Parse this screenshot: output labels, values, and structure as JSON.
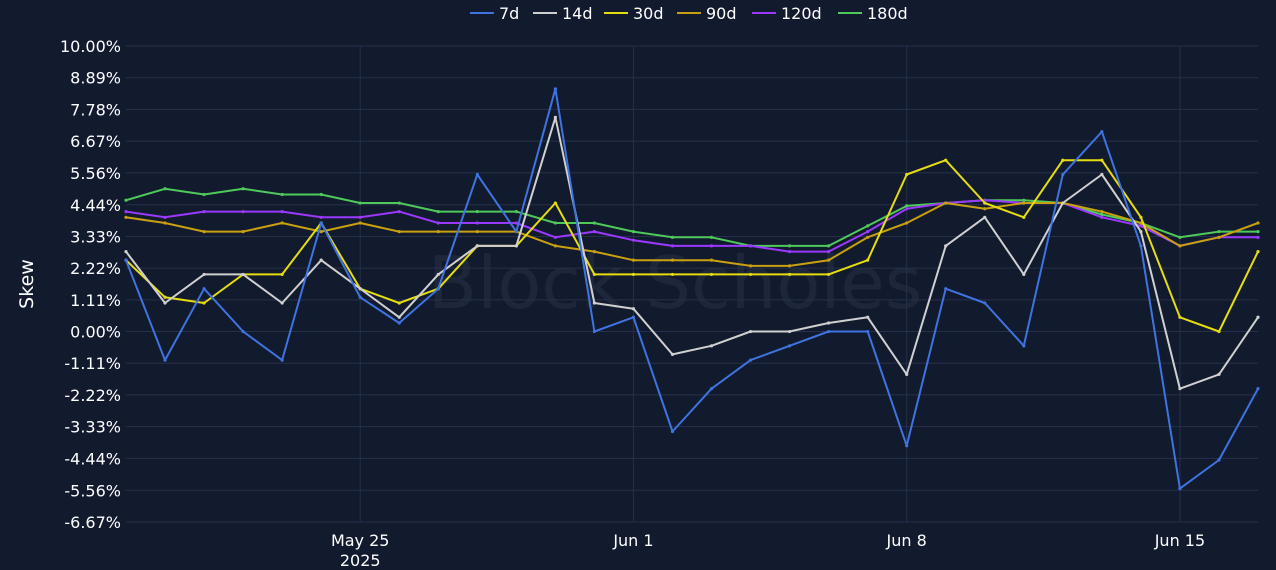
{
  "chart_data": {
    "type": "line",
    "xlabel": "",
    "ylabel": "Skew",
    "watermark": "Block Scholes",
    "y_ticks": [
      "10.00%",
      "8.89%",
      "7.78%",
      "6.67%",
      "5.56%",
      "4.44%",
      "3.33%",
      "2.22%",
      "1.11%",
      "0.00%",
      "-1.11%",
      "-2.22%",
      "-3.33%",
      "-4.44%",
      "-5.56%",
      "-6.67%"
    ],
    "ylim": [
      -6.67,
      10.0
    ],
    "x_range": [
      "2025-05-19",
      "2025-06-17"
    ],
    "x_ticks": [
      {
        "date": "2025-05-25",
        "label": "May 25",
        "sublabel": "2025"
      },
      {
        "date": "2025-06-01",
        "label": "Jun 1",
        "sublabel": ""
      },
      {
        "date": "2025-06-08",
        "label": "Jun 8",
        "sublabel": ""
      },
      {
        "date": "2025-06-15",
        "label": "Jun 15",
        "sublabel": ""
      }
    ],
    "grid": true,
    "legend_position": "top-center",
    "x": [
      "2025-05-19",
      "2025-05-20",
      "2025-05-21",
      "2025-05-22",
      "2025-05-23",
      "2025-05-24",
      "2025-05-25",
      "2025-05-26",
      "2025-05-27",
      "2025-05-28",
      "2025-05-29",
      "2025-05-30",
      "2025-05-31",
      "2025-06-01",
      "2025-06-02",
      "2025-06-03",
      "2025-06-04",
      "2025-06-05",
      "2025-06-06",
      "2025-06-07",
      "2025-06-08",
      "2025-06-09",
      "2025-06-10",
      "2025-06-11",
      "2025-06-12",
      "2025-06-13",
      "2025-06-14",
      "2025-06-15",
      "2025-06-16",
      "2025-06-17"
    ],
    "series": [
      {
        "name": "7d",
        "color": "#3f73e0",
        "values": [
          2.5,
          -1.0,
          1.5,
          0.0,
          -1.0,
          3.8,
          1.2,
          0.3,
          1.5,
          5.5,
          3.5,
          8.5,
          0.0,
          0.5,
          -3.5,
          -2.0,
          -1.0,
          -0.5,
          0.0,
          0.0,
          -4.0,
          1.5,
          1.0,
          -0.5,
          5.5,
          7.0,
          3.0,
          -5.5,
          -4.5,
          -2.0
        ]
      },
      {
        "name": "14d",
        "color": "#d0d0d0",
        "values": [
          2.8,
          1.0,
          2.0,
          2.0,
          1.0,
          2.5,
          1.5,
          0.5,
          2.0,
          3.0,
          3.0,
          7.5,
          1.0,
          0.8,
          -0.8,
          -0.5,
          0.0,
          0.0,
          0.3,
          0.5,
          -1.5,
          3.0,
          4.0,
          2.0,
          4.5,
          5.5,
          3.5,
          -2.0,
          -1.5,
          0.5
        ]
      },
      {
        "name": "30d",
        "color": "#e6dd10",
        "values": [
          2.5,
          1.2,
          1.0,
          2.0,
          2.0,
          3.8,
          1.5,
          1.0,
          1.5,
          3.0,
          3.0,
          4.5,
          2.0,
          2.0,
          2.0,
          2.0,
          2.0,
          2.0,
          2.0,
          2.5,
          5.5,
          6.0,
          4.5,
          4.0,
          6.0,
          6.0,
          4.0,
          0.5,
          0.0,
          2.8
        ]
      },
      {
        "name": "90d",
        "color": "#c8a010",
        "values": [
          4.0,
          3.8,
          3.5,
          3.5,
          3.8,
          3.5,
          3.8,
          3.5,
          3.5,
          3.5,
          3.5,
          3.0,
          2.8,
          2.5,
          2.5,
          2.5,
          2.3,
          2.3,
          2.5,
          3.3,
          3.8,
          4.5,
          4.3,
          4.5,
          4.5,
          4.2,
          3.8,
          3.0,
          3.3,
          3.8
        ]
      },
      {
        "name": "120d",
        "color": "#9a38ff",
        "values": [
          4.2,
          4.0,
          4.2,
          4.2,
          4.2,
          4.0,
          4.0,
          4.2,
          3.8,
          3.8,
          3.8,
          3.3,
          3.5,
          3.2,
          3.0,
          3.0,
          3.0,
          2.8,
          2.8,
          3.5,
          4.3,
          4.5,
          4.6,
          4.5,
          4.5,
          4.0,
          3.7,
          3.0,
          3.3,
          3.3
        ]
      },
      {
        "name": "180d",
        "color": "#4ec95a",
        "values": [
          4.6,
          5.0,
          4.8,
          5.0,
          4.8,
          4.8,
          4.5,
          4.5,
          4.2,
          4.2,
          4.2,
          3.8,
          3.8,
          3.5,
          3.3,
          3.3,
          3.0,
          3.0,
          3.0,
          3.7,
          4.4,
          4.5,
          4.6,
          4.6,
          4.5,
          4.1,
          3.8,
          3.3,
          3.5,
          3.5
        ]
      }
    ]
  }
}
